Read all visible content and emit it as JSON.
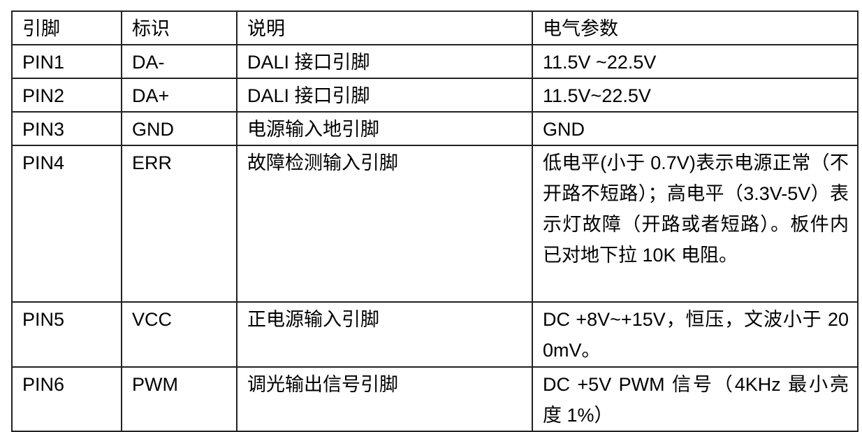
{
  "headers": [
    "引脚",
    "标识",
    "说明",
    "电气参数"
  ],
  "rows": [
    {
      "pin": "PIN1",
      "id": "DA-",
      "desc": "DALI 接口引脚",
      "spec": "11.5V ~22.5V"
    },
    {
      "pin": "PIN2",
      "id": "DA+",
      "desc": "DALI 接口引脚",
      "spec": "11.5V~22.5V"
    },
    {
      "pin": "PIN3",
      "id": "GND",
      "desc": "电源输入地引脚",
      "spec": "GND"
    },
    {
      "pin": "PIN4",
      "id": "ERR",
      "desc": "故障检测输入引脚",
      "spec": "低电平(小于 0.7V)表示电源正常（不开路不短路）；高电平（3.3V-5V）表示灯故障（开路或者短路）。板件内已对地下拉 10K 电阻。"
    },
    {
      "pin": "PIN5",
      "id": "VCC",
      "desc": "正电源输入引脚",
      "spec": "DC +8V~+15V，恒压，文波小于 200mV。"
    },
    {
      "pin": "PIN6",
      "id": "PWM",
      "desc": "调光输出信号引脚",
      "spec": "DC +5V PWM 信号（4KHz 最小亮度 1%）"
    }
  ]
}
